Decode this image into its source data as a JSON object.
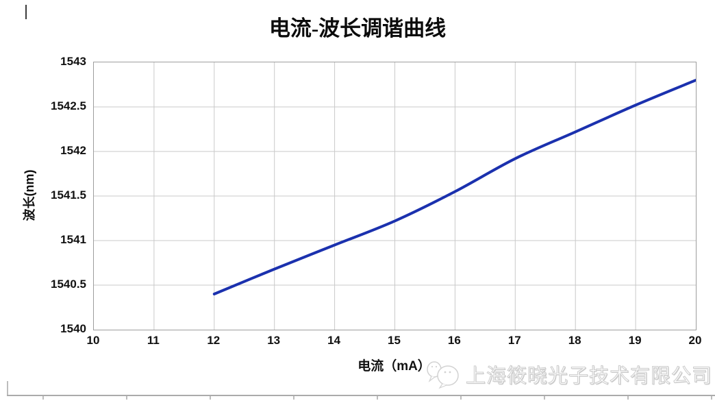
{
  "chart_data": {
    "type": "line",
    "title": "电流-波长调谐曲线",
    "xlabel": "电流（mA）",
    "ylabel": "波长(nm)",
    "xlim": [
      10,
      20
    ],
    "ylim": [
      1540,
      1543
    ],
    "x_ticks": [
      10,
      11,
      12,
      13,
      14,
      15,
      16,
      17,
      18,
      19,
      20
    ],
    "y_ticks": [
      1540,
      1540.5,
      1541,
      1541.5,
      1542,
      1542.5,
      1543
    ],
    "y_tick_labels": [
      "1540",
      "1540.5",
      "1541",
      "1541.5",
      "1542",
      "1542.5",
      "1543"
    ],
    "grid": true,
    "legend": "none",
    "series": [
      {
        "name": "电流-波长调谐曲线",
        "color": "#1b31ae",
        "x": [
          12,
          13,
          14,
          15,
          16,
          17,
          18,
          19,
          20
        ],
        "y": [
          1540.4,
          1540.68,
          1540.95,
          1541.22,
          1541.55,
          1541.92,
          1542.22,
          1542.52,
          1542.8
        ]
      }
    ]
  },
  "watermark": {
    "text": "上海筱晓光子技术有限公司",
    "logo": "speech-bubbles-logo",
    "color": "#cfcfcf"
  }
}
